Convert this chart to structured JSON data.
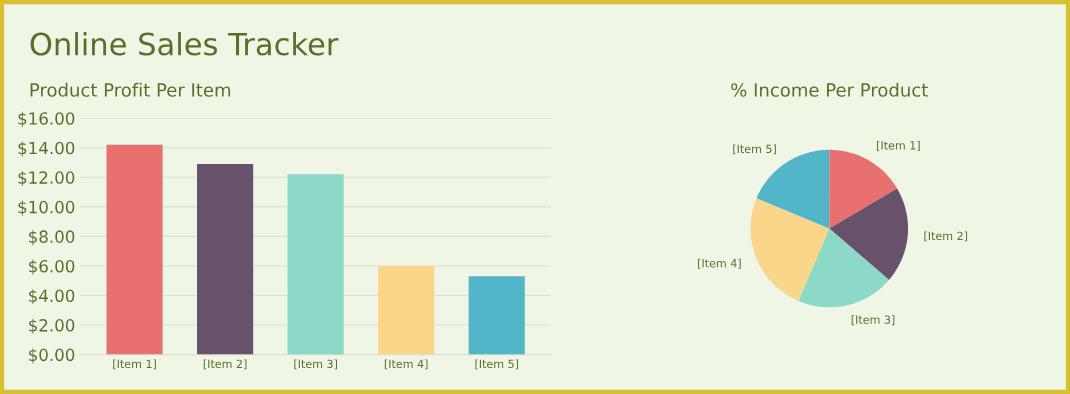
{
  "chart_data": [
    {
      "type": "bar",
      "title": "Online Sales Tracker",
      "subtitle": "Product Profit Per Item",
      "categories": [
        "[Item 1]",
        "[Item 2]",
        "[Item 3]",
        "[Item 4]",
        "[Item 5]"
      ],
      "values": [
        14.2,
        12.9,
        12.2,
        6.0,
        5.3
      ],
      "colors": [
        "#e8706f",
        "#68516b",
        "#8dd9c7",
        "#f9d68a",
        "#52b5c8"
      ],
      "ylim": [
        0,
        16
      ],
      "yticks": [
        {
          "value": 0,
          "label": "$0.00"
        },
        {
          "value": 2,
          "label": "$2.00"
        },
        {
          "value": 4,
          "label": "$4.00"
        },
        {
          "value": 6,
          "label": "$6.00"
        },
        {
          "value": 8,
          "label": "$8.00"
        },
        {
          "value": 10,
          "label": "$10.00"
        },
        {
          "value": 12,
          "label": "$12.00"
        },
        {
          "value": 14,
          "label": "$14.00"
        },
        {
          "value": 16,
          "label": "$16.00"
        }
      ],
      "grid": "y"
    },
    {
      "type": "pie",
      "title": "% Income Per Product",
      "categories": [
        "[Item 1]",
        "[Item 2]",
        "[Item 3]",
        "[Item 4]",
        "[Item 5]"
      ],
      "values": [
        16.5,
        19.8,
        20.1,
        24.9,
        18.7
      ],
      "colors": [
        "#e8706f",
        "#68516b",
        "#8dd9c7",
        "#f9d68a",
        "#52b5c8"
      ]
    }
  ]
}
